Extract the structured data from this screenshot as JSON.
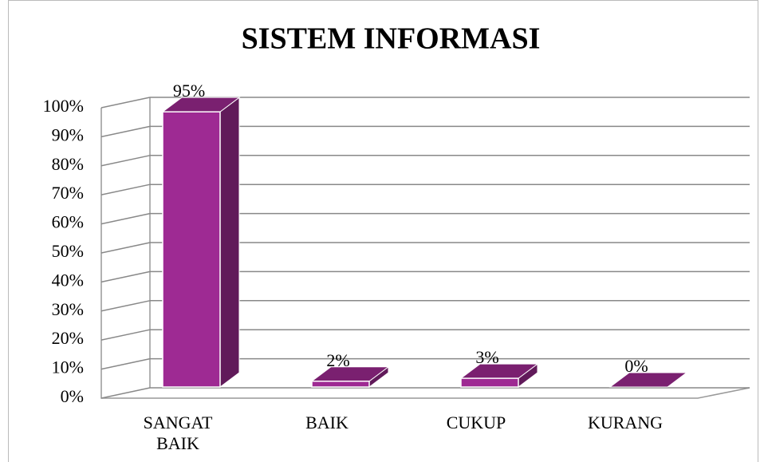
{
  "chart_data": {
    "type": "bar3d",
    "title": "SISTEM INFORMASI",
    "categories": [
      "SANGAT BAIK",
      "BAIK",
      "CUKUP",
      "KURANG"
    ],
    "values": [
      95,
      2,
      3,
      0
    ],
    "value_labels": [
      "95%",
      "2%",
      "3%",
      "0%"
    ],
    "color": "#9e2a93",
    "ylim": [
      0,
      100
    ],
    "yticks": [
      {
        "value": 0,
        "label": "0%"
      },
      {
        "value": 10,
        "label": "10%"
      },
      {
        "value": 20,
        "label": "20%"
      },
      {
        "value": 30,
        "label": "30%"
      },
      {
        "value": 40,
        "label": "40%"
      },
      {
        "value": 50,
        "label": "50%"
      },
      {
        "value": 60,
        "label": "60%"
      },
      {
        "value": 70,
        "label": "70%"
      },
      {
        "value": 80,
        "label": "80%"
      },
      {
        "value": 90,
        "label": "90%"
      },
      {
        "value": 100,
        "label": "100%"
      }
    ],
    "grid": true
  }
}
